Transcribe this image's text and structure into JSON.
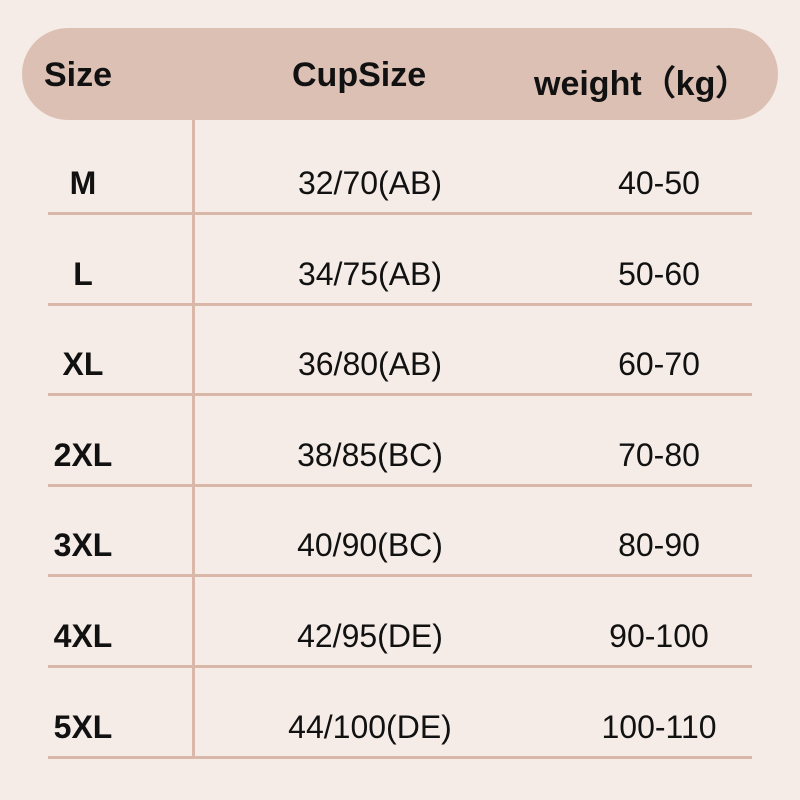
{
  "colors": {
    "background": "#f5ece7",
    "header": "#dcc0b4",
    "lines": "#d9b8aa"
  },
  "header": {
    "size": "Size",
    "cup": "CupSize",
    "weight": "weight（kg）"
  },
  "rows": [
    {
      "size": "M",
      "cup": "32/70(AB)",
      "weight": "40-50"
    },
    {
      "size": "L",
      "cup": "34/75(AB)",
      "weight": "50-60"
    },
    {
      "size": "XL",
      "cup": "36/80(AB)",
      "weight": "60-70"
    },
    {
      "size": "2XL",
      "cup": "38/85(BC)",
      "weight": "70-80"
    },
    {
      "size": "3XL",
      "cup": "40/90(BC)",
      "weight": "80-90"
    },
    {
      "size": "4XL",
      "cup": "42/95(DE)",
      "weight": "90-100"
    },
    {
      "size": "5XL",
      "cup": "44/100(DE)",
      "weight": "100-110"
    }
  ]
}
